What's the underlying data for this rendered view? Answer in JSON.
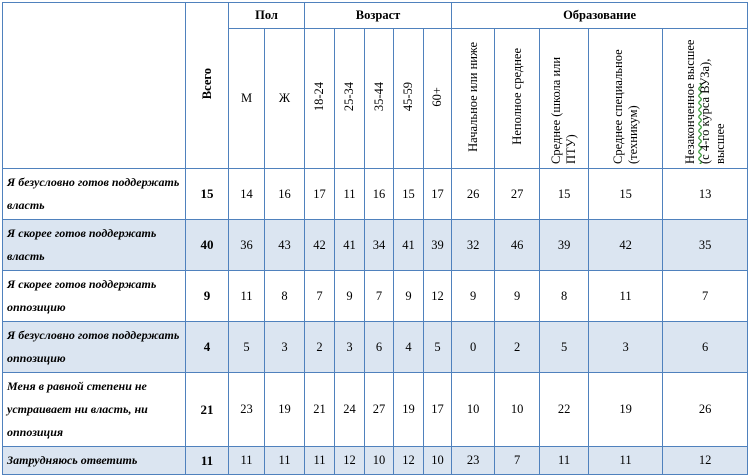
{
  "headers": {
    "total": "Всего",
    "groups": {
      "sex": "Пол",
      "age": "Возраст",
      "education": "Образование"
    },
    "sex": [
      "М",
      "Ж"
    ],
    "age": [
      "18-24",
      "25-34",
      "35-44",
      "45-59",
      "60+"
    ],
    "education": [
      "Начальное или ниже",
      "Неполное среднее",
      "Среднее  (школа или ПТУ)",
      "Среднее специальное (техникум)"
    ],
    "education_last_underlined": "Незаконченное",
    "education_last_rest": " высшее (с 4-го курса ВУЗа), высшее"
  },
  "rows": [
    {
      "label": "Я безусловно готов поддержать власть",
      "values": [
        "15",
        "14",
        "16",
        "17",
        "11",
        "16",
        "15",
        "17",
        "26",
        "27",
        "15",
        "15",
        "13"
      ]
    },
    {
      "label": "Я скорее готов поддержать власть",
      "values": [
        "40",
        "36",
        "43",
        "42",
        "41",
        "34",
        "41",
        "39",
        "32",
        "46",
        "39",
        "42",
        "35"
      ]
    },
    {
      "label": "Я скорее готов поддержать оппозицию",
      "values": [
        "9",
        "11",
        "8",
        "7",
        "9",
        "7",
        "9",
        "12",
        "9",
        "9",
        "8",
        "11",
        "7"
      ]
    },
    {
      "label": "Я безусловно готов поддержать оппозицию",
      "values": [
        "4",
        "5",
        "3",
        "2",
        "3",
        "6",
        "4",
        "5",
        "0",
        "2",
        "5",
        "3",
        "6"
      ]
    },
    {
      "label": "Меня в равной степени не устраивает ни власть, ни оппозиция",
      "values": [
        "21",
        "23",
        "19",
        "21",
        "24",
        "27",
        "19",
        "17",
        "10",
        "10",
        "22",
        "19",
        "26"
      ]
    },
    {
      "label": "Затрудняюсь ответить",
      "values": [
        "11",
        "11",
        "11",
        "11",
        "12",
        "10",
        "12",
        "10",
        "23",
        "7",
        "11",
        "11",
        "12"
      ]
    }
  ],
  "colors": {
    "border": "#4f81bd",
    "shade": "#dbe5f1"
  }
}
